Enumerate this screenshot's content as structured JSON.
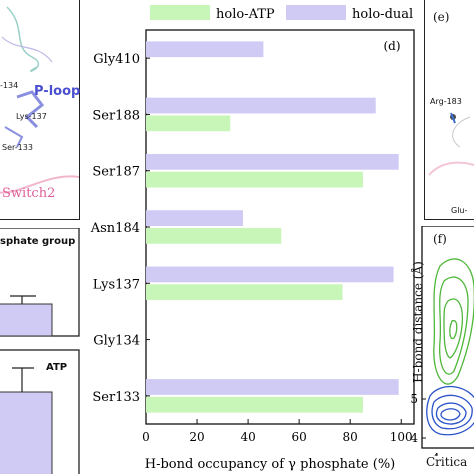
{
  "left_panel": {
    "ploop_label": "P-loop",
    "lys137_label": "Lys-137",
    "res134_label": "-134",
    "ser133_label": "Ser-133",
    "switch2_label": "Switch2",
    "phosphate_group_label": "sphate group",
    "atp_label": "ATP"
  },
  "right_panel": {
    "panel_e_label": "(e)",
    "arg183_label": "Arg-183",
    "glu_label": "Glu-",
    "panel_f_label": "(f)",
    "hbond_distance_label": "H-bond distance (Å)",
    "critica_label": "Critica",
    "y_ticks": [
      "4",
      "5"
    ],
    "x_tick": "4"
  },
  "colors": {
    "holo_atp": "#c8f5b8",
    "holo_dual": "#cfcbf5",
    "contour_green": "#4fb83a",
    "contour_blue": "#2a52c9"
  },
  "chart_data": {
    "type": "bar",
    "orientation": "horizontal",
    "panel_label": "(d)",
    "categories": [
      "Gly410",
      "Ser188",
      "Ser187",
      "Asn184",
      "Lys137",
      "Gly134",
      "Ser133"
    ],
    "series": [
      {
        "name": "holo-ATP",
        "values": [
          0,
          33,
          85,
          53,
          77,
          0,
          85
        ]
      },
      {
        "name": "holo-dual",
        "values": [
          46,
          90,
          99,
          38,
          97,
          0,
          99
        ]
      }
    ],
    "xlabel": "H-bond occupancy of γ phosphate (%)",
    "xlim": [
      0,
      105
    ],
    "x_ticks": [
      0,
      20,
      40,
      60,
      80,
      100
    ],
    "legend_position": "top",
    "grid": false
  }
}
